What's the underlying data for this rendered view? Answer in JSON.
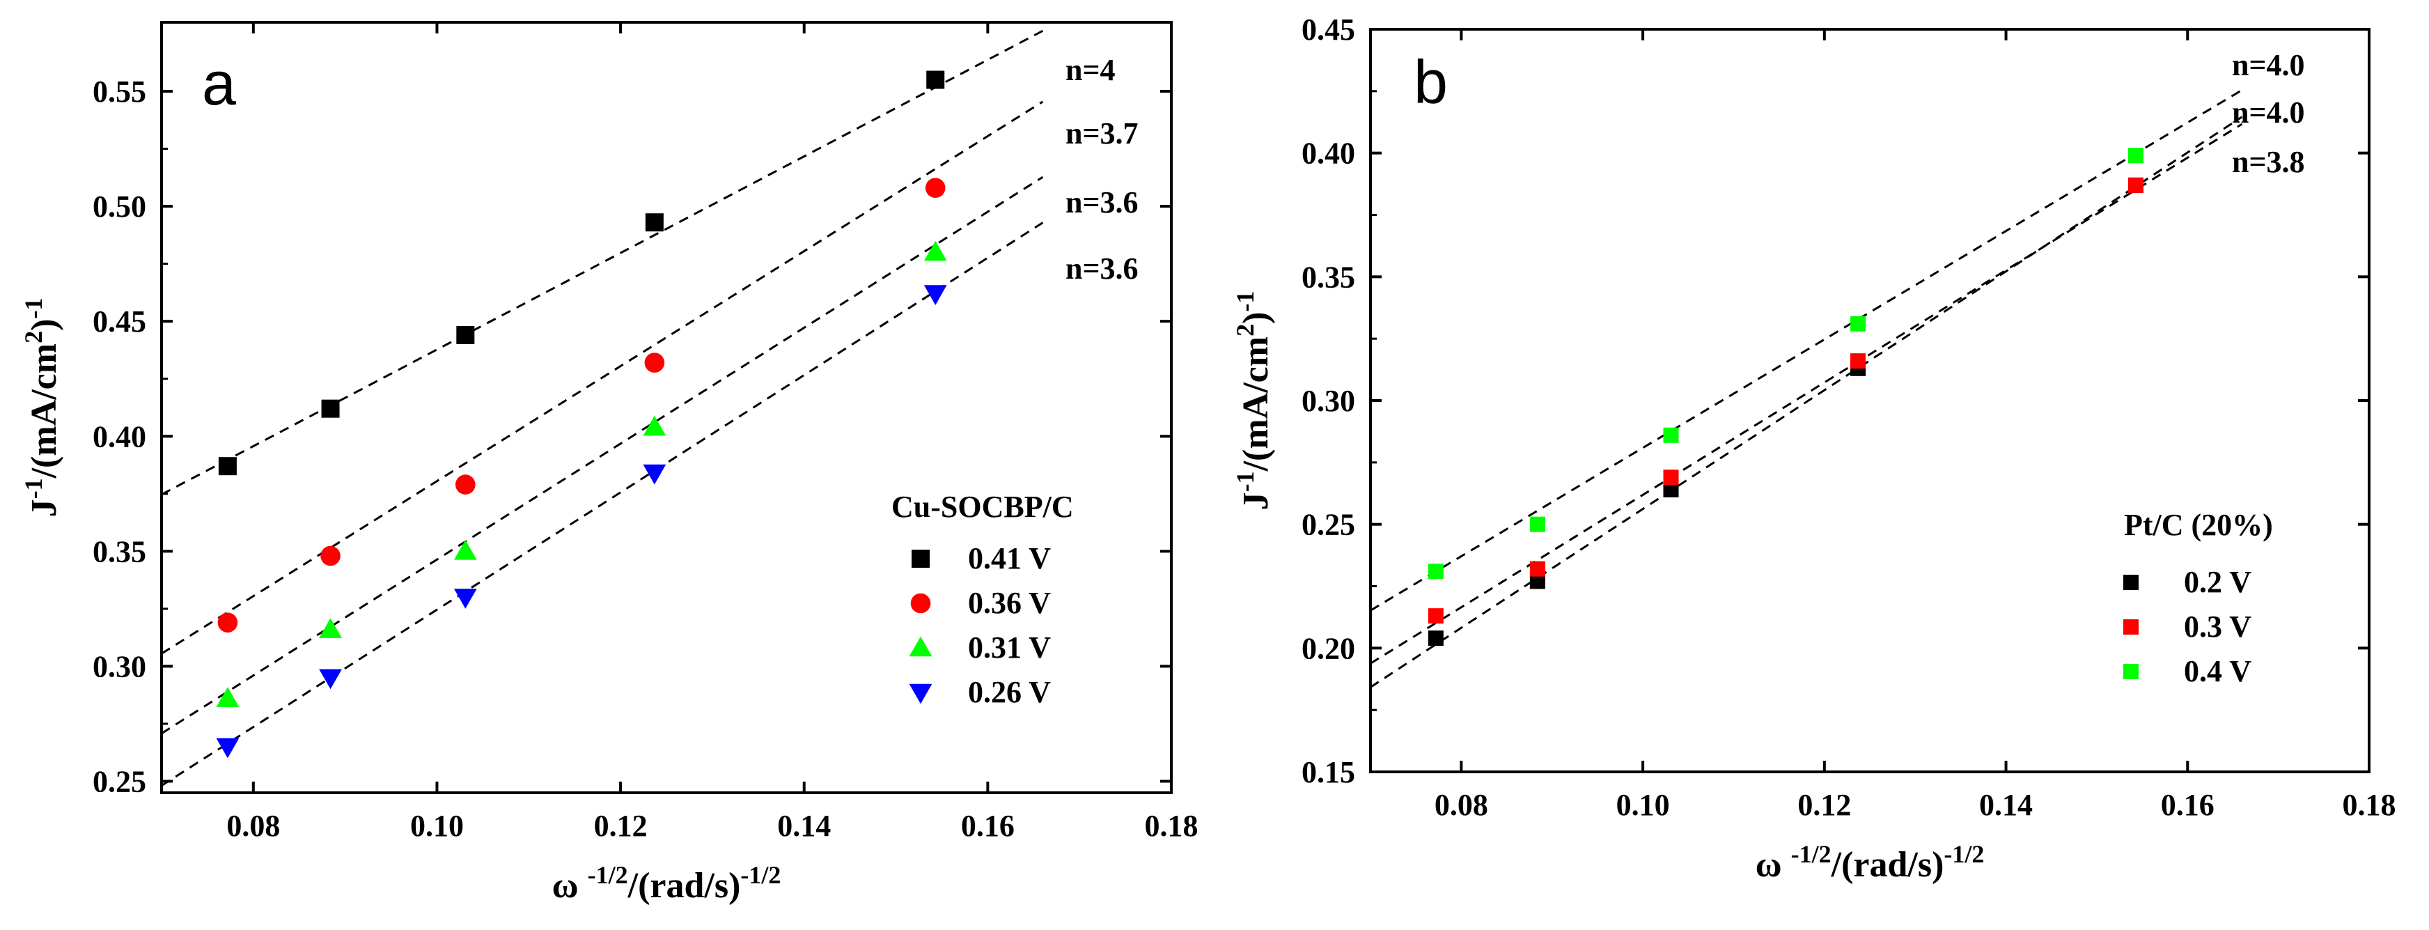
{
  "chart_data": [
    {
      "type": "scatter",
      "panel": "a",
      "xlabel": "ω -1/2/(rad/s)-1/2",
      "ylabel": "J-1/(mA/cm2)-1",
      "xlim": [
        0.07,
        0.18
      ],
      "ylim": [
        0.245,
        0.58
      ],
      "x_ticks": [
        "0.08",
        "0.10",
        "0.12",
        "0.14",
        "0.16",
        "0.18"
      ],
      "y_ticks": [
        "0.25",
        "0.30",
        "0.35",
        "0.40",
        "0.45",
        "0.50",
        "0.55"
      ],
      "legend_title": "Cu-SOCBP/C",
      "legend_position": "lower-right",
      "series": [
        {
          "name": "0.41 V",
          "color": "#000000",
          "marker": "square",
          "x": [
            0.0772,
            0.0884,
            0.1031,
            0.1237,
            0.1543
          ],
          "y": [
            0.387,
            0.412,
            0.444,
            0.493,
            0.555
          ],
          "fit": {
            "slope": 2.1,
            "intercept": 0.2277
          },
          "annotation": "n=4"
        },
        {
          "name": "0.36 V",
          "color": "#ff0000",
          "marker": "circle",
          "x": [
            0.0772,
            0.0884,
            0.1031,
            0.1237,
            0.1543
          ],
          "y": [
            0.319,
            0.348,
            0.379,
            0.432,
            0.508
          ],
          "fit": {
            "slope": 2.5,
            "intercept": 0.1305
          },
          "annotation": "n=3.7"
        },
        {
          "name": "0.31 V",
          "color": "#00ff00",
          "marker": "triangle-up",
          "x": [
            0.0772,
            0.0884,
            0.1031,
            0.1237,
            0.1543
          ],
          "y": [
            0.286,
            0.316,
            0.35,
            0.404,
            0.48
          ],
          "fit": {
            "slope": 2.52,
            "intercept": 0.0944
          },
          "annotation": "n=3.6"
        },
        {
          "name": "0.26 V",
          "color": "#0000ff",
          "marker": "triangle-down",
          "x": [
            0.0772,
            0.0884,
            0.1031,
            0.1237,
            0.1543
          ],
          "y": [
            0.265,
            0.295,
            0.33,
            0.384,
            0.462
          ],
          "fit": {
            "slope": 2.55,
            "intercept": 0.0696
          },
          "annotation": "n=3.6"
        }
      ]
    },
    {
      "type": "scatter",
      "panel": "b",
      "xlabel": "ω -1/2/(rad/s)-1/2",
      "ylabel": "J-1/(mA/cm2)-1",
      "xlim": [
        0.07,
        0.18
      ],
      "ylim": [
        0.15,
        0.45
      ],
      "x_ticks": [
        "0.08",
        "0.10",
        "0.12",
        "0.14",
        "0.16",
        "0.18"
      ],
      "y_ticks": [
        "0.15",
        "0.20",
        "0.25",
        "0.30",
        "0.35",
        "0.40",
        "0.45"
      ],
      "legend_title": "Pt/C (20%)",
      "legend_position": "lower-right",
      "series": [
        {
          "name": "0.2 V",
          "color": "#000000",
          "marker": "square",
          "x": [
            0.0772,
            0.0884,
            0.1031,
            0.1237,
            0.1543
          ],
          "y": [
            0.204,
            0.227,
            0.264,
            0.313,
            0.387
          ],
          "fit": {
            "slope": 2.4,
            "intercept": 0.0162
          },
          "annotation": "n=4.0"
        },
        {
          "name": "0.3 V",
          "color": "#ff0000",
          "marker": "square",
          "x": [
            0.0772,
            0.0884,
            0.1031,
            0.1237,
            0.1543
          ],
          "y": [
            0.213,
            0.232,
            0.269,
            0.316,
            0.387
          ],
          "fit": {
            "slope": 2.27,
            "intercept": 0.0349
          },
          "annotation": "n=4.0"
        },
        {
          "name": "0.4 V",
          "color": "#00ff00",
          "marker": "square",
          "x": [
            0.0772,
            0.0884,
            0.1031,
            0.1237,
            0.1543
          ],
          "y": [
            0.231,
            0.25,
            0.286,
            0.331,
            0.399
          ],
          "fit": {
            "slope": 2.19,
            "intercept": 0.0619
          },
          "annotation": "n=3.8"
        }
      ]
    }
  ]
}
